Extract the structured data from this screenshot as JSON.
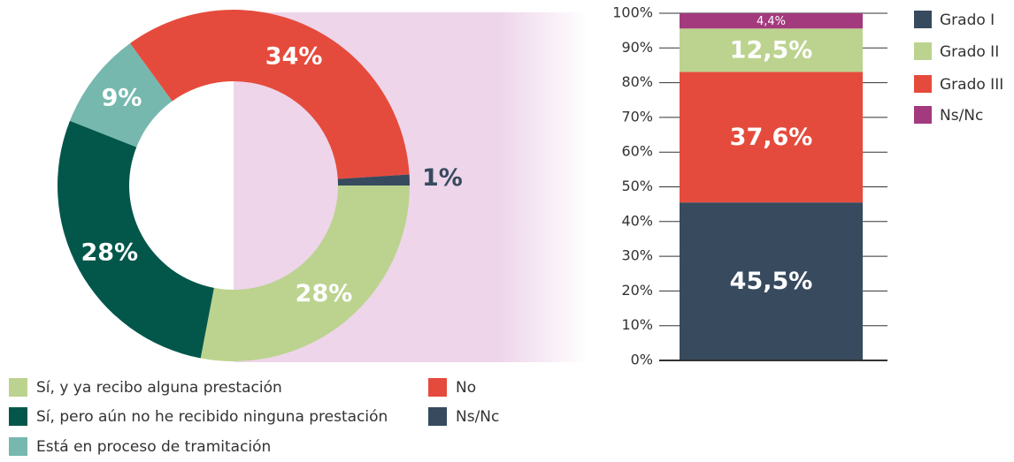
{
  "chart_data": [
    {
      "type": "donut",
      "categories": [
        "Sí, y ya recibo alguna prestación",
        "Sí, pero aún no he recibido ninguna prestación",
        "Está en proceso de tramitación",
        "No",
        "Ns/Nc"
      ],
      "values": [
        28,
        28,
        9,
        34,
        1
      ],
      "value_labels": [
        "28%",
        "28%",
        "9%",
        "34%",
        "1%"
      ],
      "colors": [
        "#bcd38f",
        "#03574a",
        "#76b8ae",
        "#e54b3c",
        "#374a5e"
      ]
    },
    {
      "type": "stacked_bar",
      "ylim": [
        0,
        100
      ],
      "yticks": [
        {
          "value": 0,
          "label": "0%"
        },
        {
          "value": 10,
          "label": "10%"
        },
        {
          "value": 20,
          "label": "20%"
        },
        {
          "value": 30,
          "label": "30%"
        },
        {
          "value": 40,
          "label": "40%"
        },
        {
          "value": 50,
          "label": "50%"
        },
        {
          "value": 60,
          "label": "60%"
        },
        {
          "value": 70,
          "label": "70%"
        },
        {
          "value": 80,
          "label": "80%"
        },
        {
          "value": 90,
          "label": "90%"
        },
        {
          "value": 100,
          "label": "100%"
        }
      ],
      "series": [
        {
          "name": "Grado I",
          "color": "#374a5e",
          "values": [
            45.5
          ],
          "value_labels": [
            "45,5%"
          ]
        },
        {
          "name": "Grado II",
          "color": "#bcd38f",
          "values": [
            12.5
          ],
          "value_labels": [
            "12,5%"
          ]
        },
        {
          "name": "Grado III",
          "color": "#e54b3c",
          "values": [
            37.6
          ],
          "value_labels": [
            "37,6%"
          ]
        },
        {
          "name": "Ns/Nc",
          "color": "#a33a7d",
          "values": [
            4.4
          ],
          "value_labels": [
            "4,4%"
          ]
        }
      ]
    }
  ]
}
